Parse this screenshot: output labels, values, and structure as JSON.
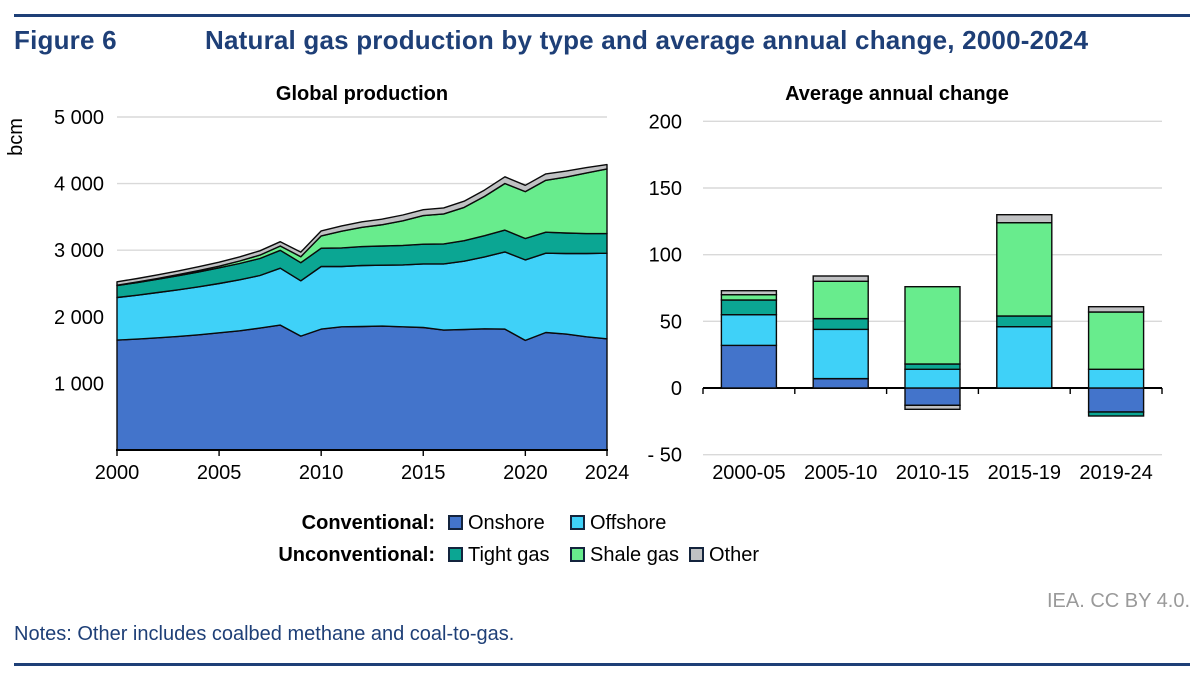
{
  "header": {
    "figure_label": "Figure 6",
    "title": "Natural gas production by type and average annual change, 2000-2024"
  },
  "footer": {
    "attribution": "IEA. CC BY 4.0.",
    "notes": "Notes: Other includes coalbed methane and coal-to-gas."
  },
  "colors": {
    "navy": "#1E3F77",
    "onshore": "#4374CB",
    "offshore": "#3FD1F8",
    "tight_gas": "#0BA693",
    "shale_gas": "#68EC8D",
    "other": "#C0C1C3",
    "gridline": "#D9D9D9",
    "outline": "#0A0A0A",
    "attribution_gray": "#9A9A9A"
  },
  "legend": {
    "rows": [
      {
        "label": "Conventional:",
        "items": [
          {
            "name": "Onshore",
            "color": "#4374CB"
          },
          {
            "name": "Offshore",
            "color": "#3FD1F8"
          }
        ]
      },
      {
        "label": "Unconventional:",
        "items": [
          {
            "name": "Tight gas",
            "color": "#0BA693"
          },
          {
            "name": "Shale gas",
            "color": "#68EC8D"
          },
          {
            "name": "Other",
            "color": "#C0C1C3"
          }
        ]
      }
    ]
  },
  "chart_data": [
    {
      "type": "area",
      "stacked": true,
      "title": "Global production",
      "ylabel": "bcm",
      "ylim": [
        0,
        5000
      ],
      "grid": true,
      "y_ticks": [
        {
          "value": 5000,
          "label": "5 000"
        },
        {
          "value": 4000,
          "label": "4 000"
        },
        {
          "value": 3000,
          "label": "3 000"
        },
        {
          "value": 2000,
          "label": "2 000"
        },
        {
          "value": 1000,
          "label": "1 000"
        }
      ],
      "x_ticks": [
        {
          "value": 2000,
          "label": "2000"
        },
        {
          "value": 2005,
          "label": "2005"
        },
        {
          "value": 2010,
          "label": "2010"
        },
        {
          "value": 2015,
          "label": "2015"
        },
        {
          "value": 2020,
          "label": "2020"
        },
        {
          "value": 2024,
          "label": "2024"
        }
      ],
      "x": [
        2000,
        2001,
        2002,
        2003,
        2004,
        2005,
        2006,
        2007,
        2008,
        2009,
        2010,
        2011,
        2012,
        2013,
        2014,
        2015,
        2016,
        2017,
        2018,
        2019,
        2020,
        2021,
        2022,
        2023,
        2024
      ],
      "series": [
        {
          "name": "Onshore",
          "color": "#4374CB",
          "values": [
            1650,
            1665,
            1685,
            1705,
            1730,
            1760,
            1790,
            1830,
            1875,
            1710,
            1815,
            1850,
            1855,
            1860,
            1850,
            1840,
            1800,
            1810,
            1820,
            1815,
            1645,
            1765,
            1740,
            1700,
            1670
          ]
        },
        {
          "name": "Offshore",
          "color": "#3FD1F8",
          "values": [
            640,
            660,
            680,
            700,
            720,
            740,
            765,
            790,
            855,
            830,
            940,
            905,
            915,
            915,
            930,
            955,
            995,
            1025,
            1080,
            1160,
            1210,
            1190,
            1210,
            1250,
            1285
          ]
        },
        {
          "name": "Tight gas",
          "color": "#0BA693",
          "values": [
            180,
            190,
            200,
            212,
            224,
            235,
            245,
            255,
            268,
            272,
            275,
            280,
            284,
            288,
            292,
            295,
            300,
            308,
            318,
            327,
            320,
            315,
            308,
            300,
            295
          ]
        },
        {
          "name": "Shale gas",
          "color": "#68EC8D",
          "values": [
            5,
            8,
            12,
            16,
            20,
            25,
            38,
            52,
            65,
            90,
            185,
            250,
            290,
            320,
            370,
            430,
            450,
            500,
            590,
            700,
            705,
            780,
            840,
            910,
            970
          ]
        },
        {
          "name": "Other",
          "color": "#C0C1C3",
          "values": [
            50,
            52,
            54,
            56,
            58,
            60,
            62,
            64,
            65,
            70,
            75,
            80,
            82,
            84,
            86,
            88,
            90,
            92,
            95,
            100,
            95,
            95,
            90,
            80,
            65
          ]
        }
      ]
    },
    {
      "type": "bar",
      "stacked": true,
      "title": "Average annual change",
      "ylim": [
        -50,
        200
      ],
      "grid": true,
      "y_ticks": [
        {
          "value": 200,
          "label": "200"
        },
        {
          "value": 150,
          "label": "150"
        },
        {
          "value": 100,
          "label": "100"
        },
        {
          "value": 50,
          "label": "50"
        },
        {
          "value": 0,
          "label": "0"
        },
        {
          "value": -50,
          "label": "- 50"
        }
      ],
      "categories": [
        "2000-05",
        "2005-10",
        "2010-15",
        "2015-19",
        "2019-24"
      ],
      "series": [
        {
          "name": "Onshore",
          "color": "#4374CB",
          "values": [
            32,
            7,
            -13,
            0,
            -18
          ]
        },
        {
          "name": "Offshore",
          "color": "#3FD1F8",
          "values": [
            23,
            37,
            14,
            46,
            14
          ]
        },
        {
          "name": "Tight gas",
          "color": "#0BA693",
          "values": [
            11,
            8,
            4,
            8,
            -3
          ]
        },
        {
          "name": "Shale gas",
          "color": "#68EC8D",
          "values": [
            4,
            28,
            58,
            70,
            43
          ]
        },
        {
          "name": "Other",
          "color": "#C0C1C3",
          "values": [
            3,
            4,
            -3,
            6,
            4
          ]
        }
      ]
    }
  ]
}
